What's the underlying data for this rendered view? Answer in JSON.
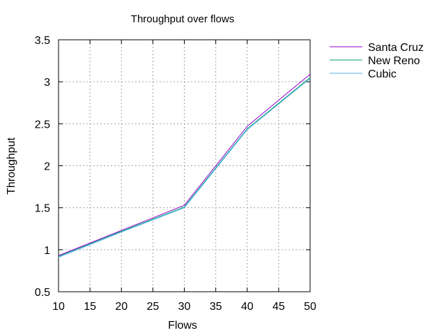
{
  "chart_data": {
    "type": "line",
    "title": "Throughput over flows",
    "xlabel": "Flows",
    "ylabel": "Throughput",
    "xlim": [
      10,
      50
    ],
    "ylim": [
      0.5,
      3.5
    ],
    "x_ticks": [
      "10",
      "15",
      "20",
      "25",
      "30",
      "35",
      "40",
      "45",
      "50"
    ],
    "y_ticks": [
      "0.5",
      "1",
      "1.5",
      "2",
      "2.5",
      "3",
      "3.5"
    ],
    "x": [
      10,
      20,
      30,
      40,
      50
    ],
    "grid": true,
    "legend_position": "top-right outside",
    "series": [
      {
        "name": "Santa Cruz",
        "color": "#9400d3",
        "values": [
          0.93,
          1.23,
          1.53,
          2.47,
          3.09
        ]
      },
      {
        "name": "New Reno",
        "color": "#009e73",
        "values": [
          0.92,
          1.22,
          1.51,
          2.44,
          3.05
        ]
      },
      {
        "name": "Cubic",
        "color": "#56b4e9",
        "values": [
          0.91,
          1.21,
          1.5,
          2.43,
          3.04
        ]
      }
    ]
  }
}
